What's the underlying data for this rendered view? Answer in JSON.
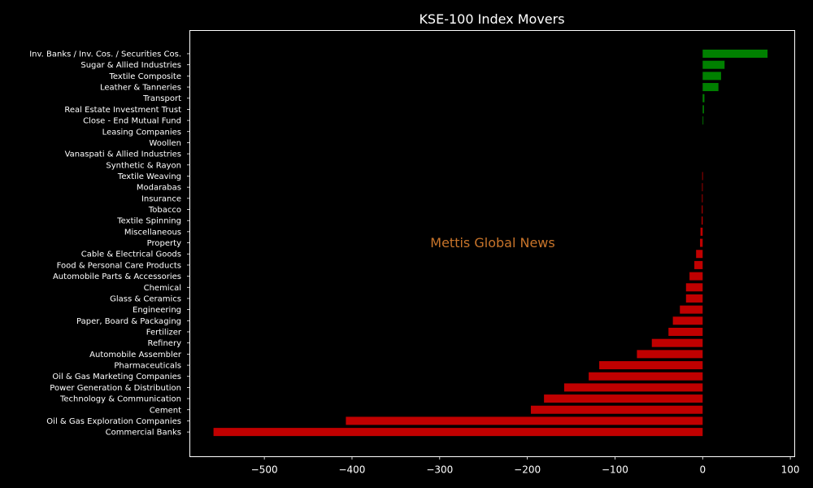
{
  "chart_data": {
    "type": "bar",
    "orientation": "horizontal",
    "title": "KSE-100 Index Movers",
    "watermark": "Mettis Global News",
    "xlim": [
      -585,
      105
    ],
    "xticks": [
      -500,
      -400,
      -300,
      -200,
      -100,
      0,
      100
    ],
    "xtick_labels": [
      "−500",
      "−400",
      "−300",
      "−200",
      "−100",
      "0",
      "100"
    ],
    "grid": false,
    "colors": {
      "positive": "#008000",
      "negative": "#c00000",
      "background": "#000000",
      "axes": "#ffffff",
      "watermark": "#c8742a"
    },
    "categories": [
      "Inv. Banks / Inv. Cos. / Securities Cos.",
      "Sugar & Allied Industries",
      "Textile Composite",
      "Leather & Tanneries",
      "Transport",
      "Real Estate Investment Trust",
      "Close - End Mutual Fund",
      "Leasing Companies",
      "Woollen",
      "Vanaspati & Allied Industries",
      "Synthetic & Rayon",
      "Textile Weaving",
      "Modarabas",
      "Insurance",
      "Tobacco",
      "Textile Spinning",
      "Miscellaneous",
      "Property",
      "Cable & Electrical Goods",
      "Food & Personal Care Products",
      "Automobile Parts & Accessories",
      "Chemical",
      "Glass & Ceramics",
      "Engineering",
      "Paper, Board & Packaging",
      "Fertilizer",
      "Refinery",
      "Automobile Assembler",
      "Pharmaceuticals",
      "Oil & Gas Marketing Companies",
      "Power Generation & Distribution",
      "Technology & Communication",
      "Cement",
      "Oil & Gas Exploration Companies",
      "Commercial Banks"
    ],
    "values": [
      74,
      25,
      21,
      18,
      2,
      1.5,
      0.8,
      0,
      0,
      0,
      0,
      -0.5,
      -0.7,
      -0.8,
      -1,
      -1.2,
      -2.5,
      -3,
      -7.5,
      -9.5,
      -15,
      -19,
      -19,
      -26,
      -34,
      -39,
      -58,
      -75,
      -118,
      -130,
      -158,
      -181,
      -196,
      -407,
      -558
    ]
  }
}
